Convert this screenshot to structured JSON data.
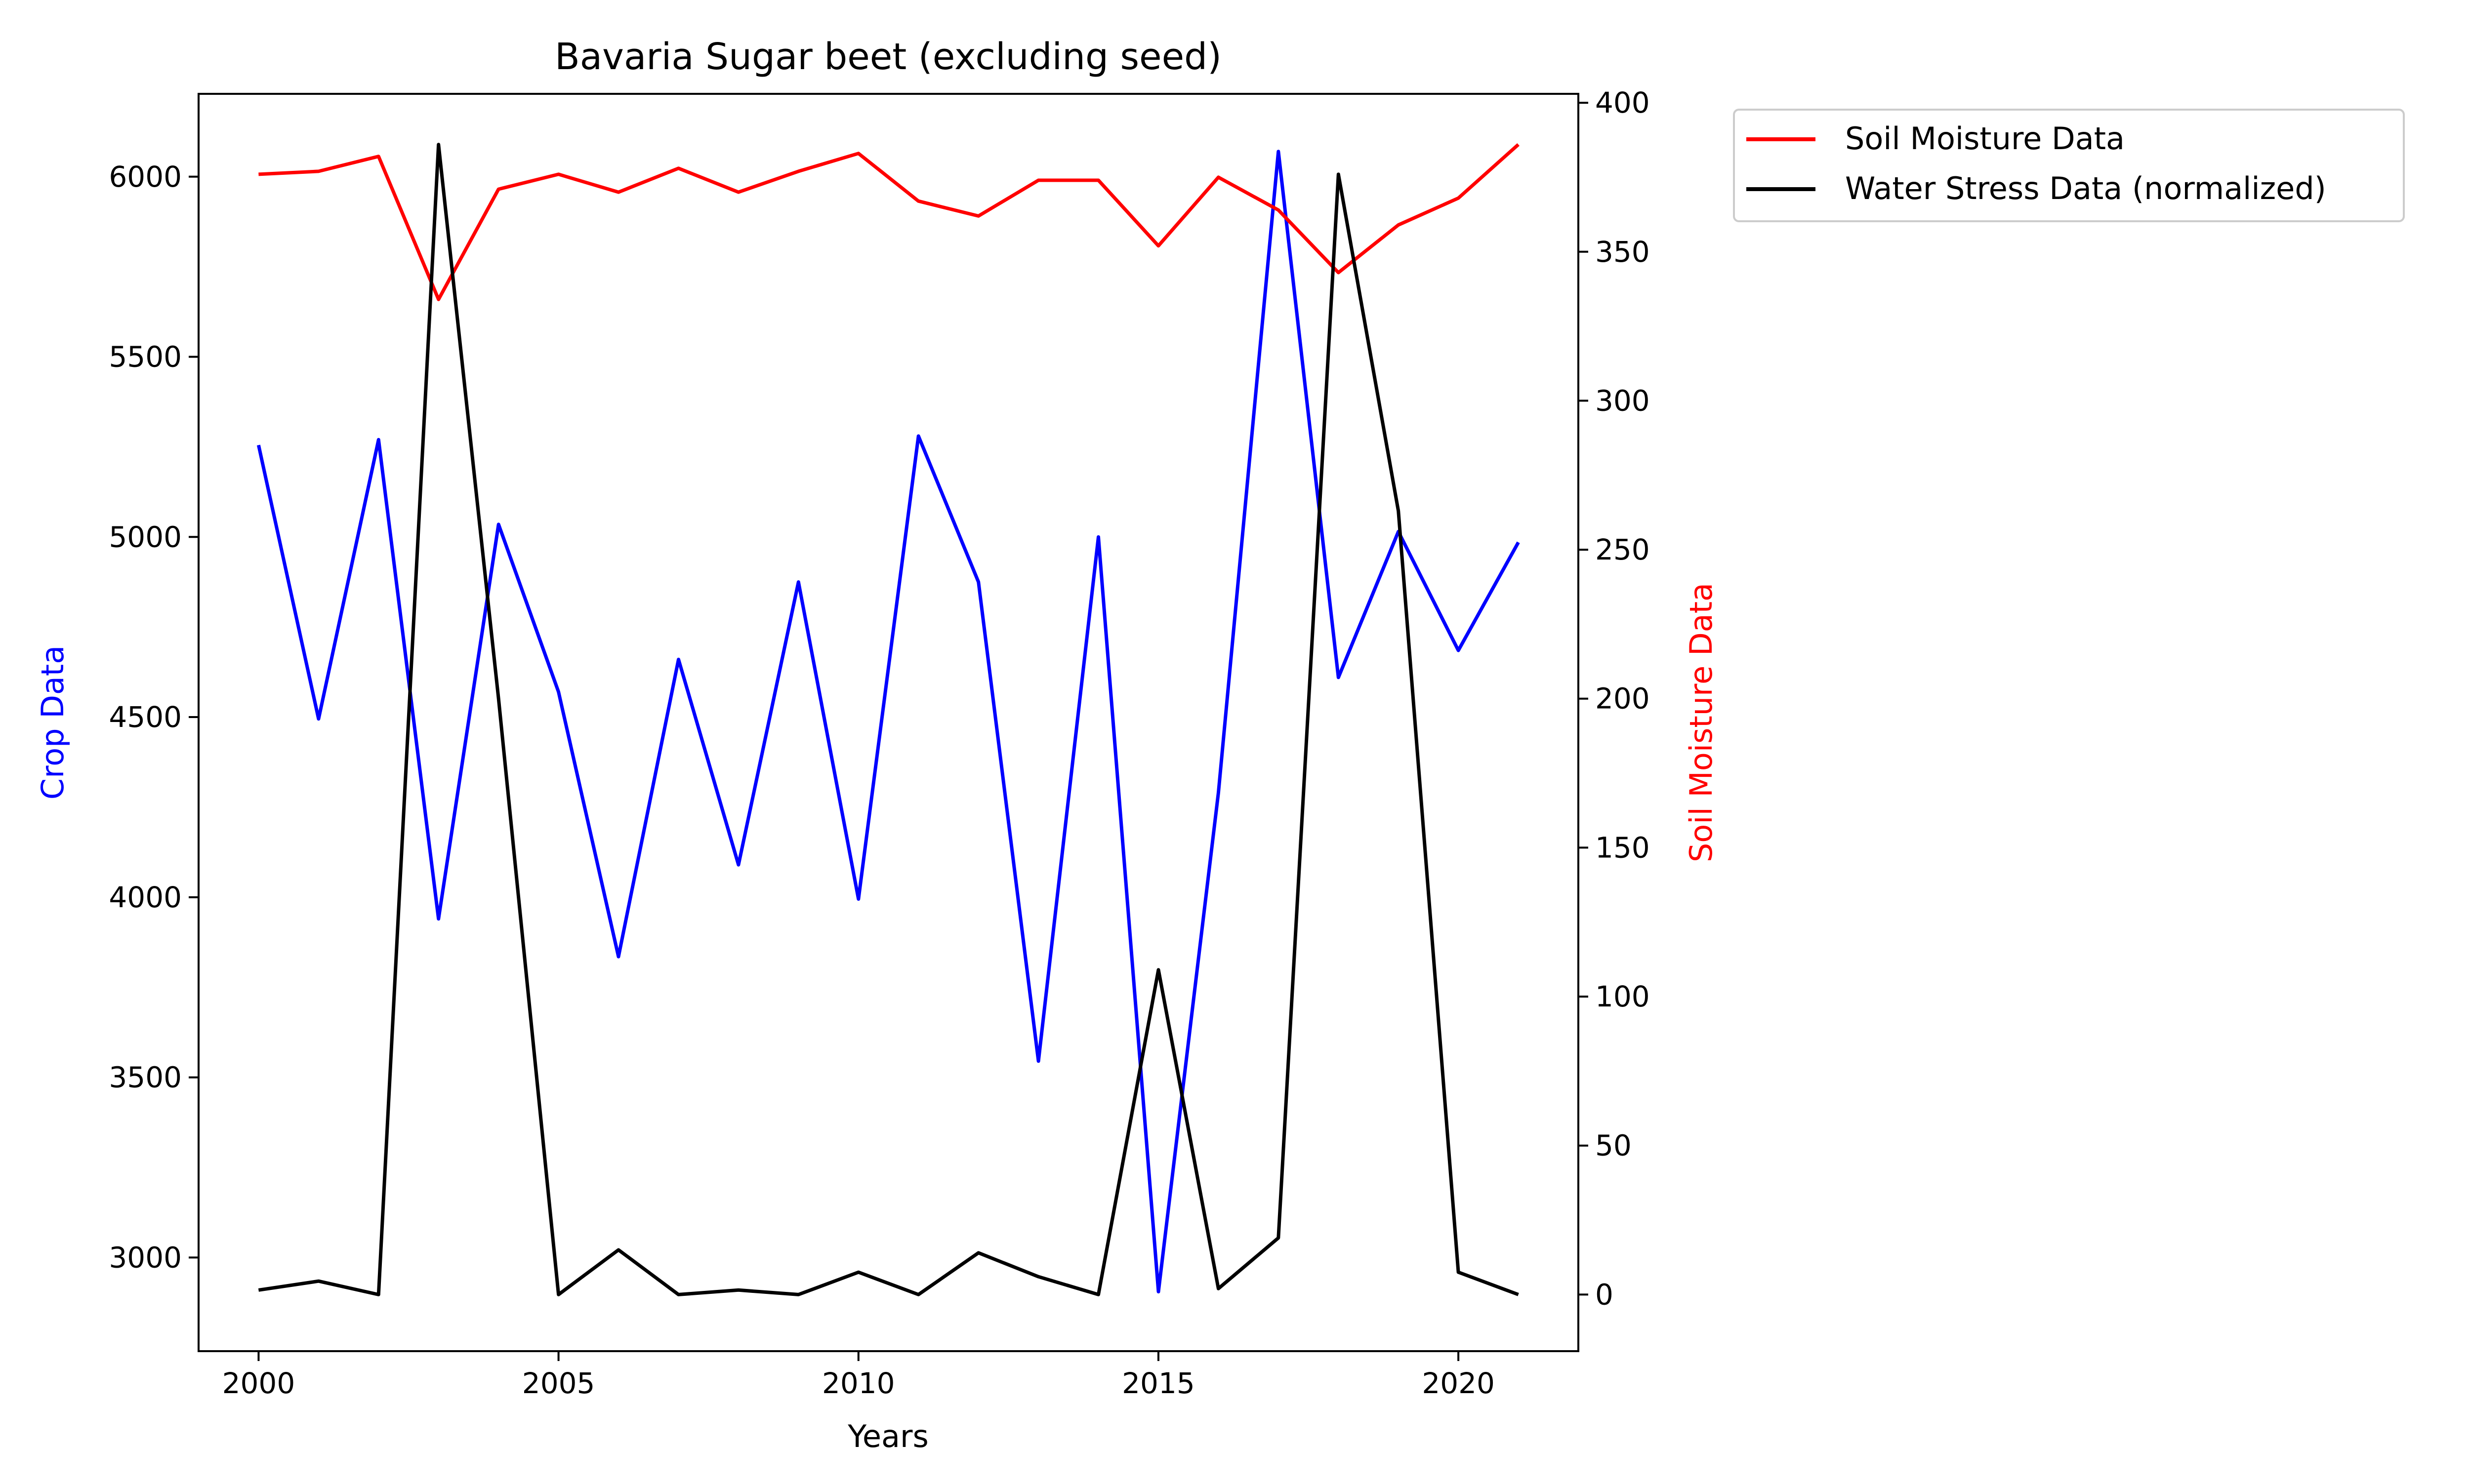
{
  "chart_data": {
    "type": "line",
    "title": "Bavaria Sugar beet (excluding seed)",
    "xlabel": "Years",
    "ylabel_left": "Crop Data",
    "ylabel_right": "Soil Moisture Data",
    "xlim": [
      1999,
      2022
    ],
    "ylim_left": [
      2740,
      6230
    ],
    "ylim_right": [
      -19,
      403
    ],
    "x_ticks": [
      2000,
      2005,
      2010,
      2015,
      2020
    ],
    "y_ticks_left": [
      3000,
      3500,
      4000,
      4500,
      5000,
      5500,
      6000
    ],
    "y_ticks_right": [
      0,
      50,
      100,
      150,
      200,
      250,
      300,
      350,
      400
    ],
    "grid": false,
    "legend_position": "outside-top-right",
    "x": [
      2000,
      2001,
      2002,
      2003,
      2004,
      2005,
      2006,
      2007,
      2008,
      2009,
      2010,
      2011,
      2012,
      2013,
      2014,
      2015,
      2016,
      2017,
      2018,
      2019,
      2020,
      2021
    ],
    "series": [
      {
        "name": "",
        "axis": "left",
        "color": "#0000ff",
        "values": [
          5255,
          4495,
          5270,
          3940,
          5035,
          4570,
          3835,
          4660,
          4090,
          4875,
          3995,
          5280,
          4875,
          3545,
          5000,
          2905,
          4290,
          6070,
          4610,
          5015,
          4685,
          4985
        ]
      },
      {
        "name": "Soil Moisture Data",
        "axis": "right",
        "color": "#ff0000",
        "values": [
          376,
          377,
          382,
          334,
          371,
          376,
          370,
          378,
          370,
          377,
          383,
          367,
          362,
          374,
          374,
          352,
          375,
          364,
          343,
          359,
          368,
          386
        ]
      },
      {
        "name": "Water Stress Data (normalized)",
        "axis": "right",
        "color": "#000000",
        "values": [
          1.5,
          4.5,
          0,
          386,
          200,
          0,
          15,
          0,
          1.5,
          0,
          7.5,
          0,
          14,
          6,
          0,
          109,
          2,
          19,
          376,
          263,
          7.5,
          0
        ]
      }
    ]
  }
}
